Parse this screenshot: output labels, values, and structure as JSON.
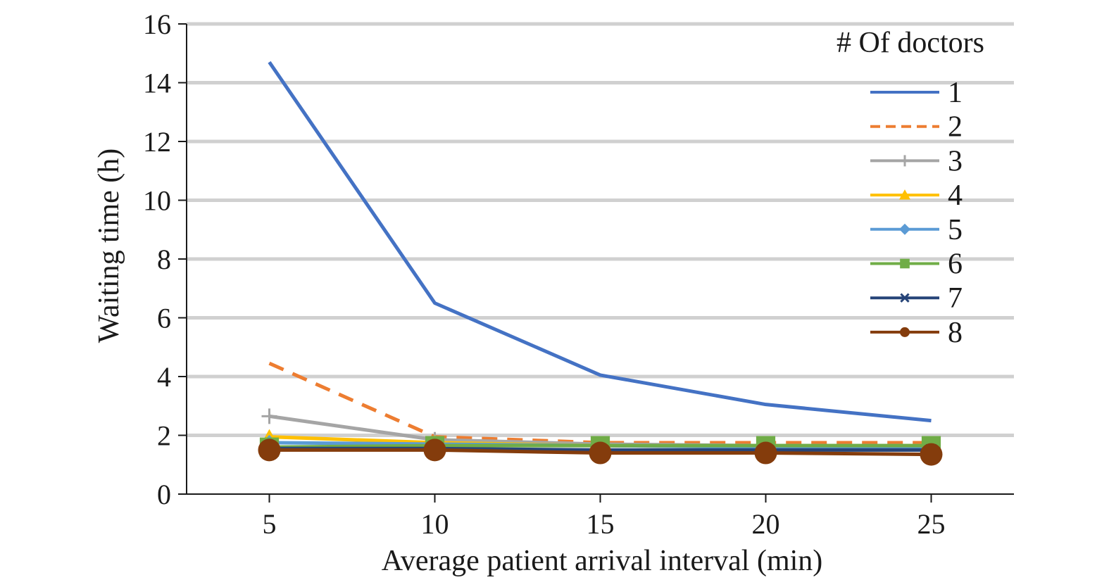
{
  "chart_data": {
    "type": "line",
    "title": "",
    "xlabel": "Average patient arrival interval (min)",
    "ylabel": "Waiting time (h)",
    "x": [
      5,
      10,
      15,
      20,
      25
    ],
    "x_ticks": [
      "5",
      "10",
      "15",
      "20",
      "25"
    ],
    "y_ticks": [
      "0",
      "2",
      "4",
      "6",
      "8",
      "10",
      "12",
      "14",
      "16"
    ],
    "ylim": [
      0,
      16
    ],
    "grid": "horizontal",
    "legend": {
      "title": "# Of doctors",
      "placement": "top-right"
    },
    "series": [
      {
        "name": "1",
        "color": "#4472c4",
        "dash": "solid",
        "marker": "none",
        "values": [
          14.7,
          6.5,
          4.05,
          3.05,
          2.5
        ]
      },
      {
        "name": "2",
        "color": "#ed7d31",
        "dash": "dashed",
        "marker": "none",
        "values": [
          4.45,
          1.95,
          1.75,
          1.75,
          1.75
        ]
      },
      {
        "name": "3",
        "color": "#a5a5a5",
        "dash": "solid",
        "marker": "plus",
        "values": [
          2.65,
          1.85,
          1.7,
          1.65,
          1.65
        ]
      },
      {
        "name": "4",
        "color": "#ffc000",
        "dash": "solid",
        "marker": "triangle",
        "values": [
          1.95,
          1.75,
          1.65,
          1.6,
          1.65
        ]
      },
      {
        "name": "5",
        "color": "#5b9bd5",
        "dash": "solid",
        "marker": "diamond",
        "values": [
          1.75,
          1.7,
          1.65,
          1.6,
          1.6
        ]
      },
      {
        "name": "6",
        "color": "#70ad47",
        "dash": "solid",
        "marker": "square",
        "values": [
          1.6,
          1.65,
          1.65,
          1.65,
          1.65
        ]
      },
      {
        "name": "7",
        "color": "#264478",
        "dash": "solid",
        "marker": "x",
        "values": [
          1.55,
          1.55,
          1.5,
          1.5,
          1.5
        ]
      },
      {
        "name": "8",
        "color": "#843c0c",
        "dash": "solid",
        "marker": "circle",
        "values": [
          1.5,
          1.5,
          1.4,
          1.4,
          1.35
        ]
      }
    ]
  }
}
